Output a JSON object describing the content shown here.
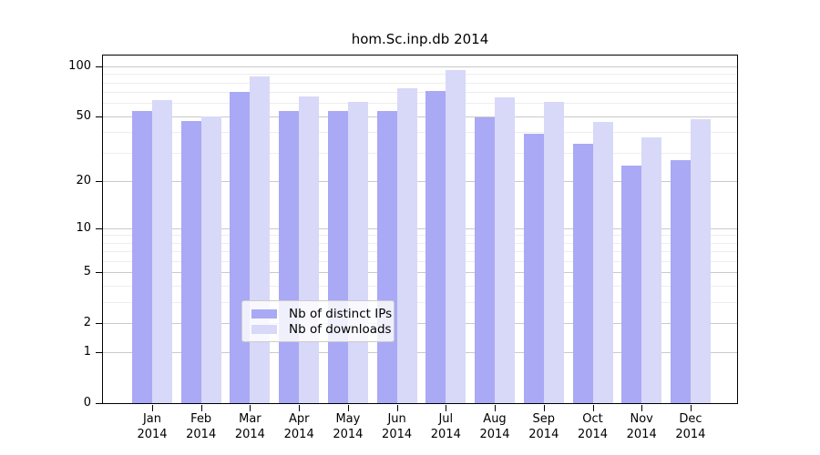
{
  "title": "hom.Sc.inp.db 2014",
  "chart_data": {
    "type": "bar",
    "title": "hom.Sc.inp.db 2014",
    "categories": [
      "Jan",
      "Feb",
      "Mar",
      "Apr",
      "May",
      "Jun",
      "Jul",
      "Aug",
      "Sep",
      "Oct",
      "Nov",
      "Dec"
    ],
    "category_year": "2014",
    "series": [
      {
        "name": "Nb of distinct IPs",
        "color": "#a9a9f5",
        "values": [
          54,
          47,
          70,
          54,
          54,
          54,
          71,
          49,
          39,
          34,
          25,
          27
        ]
      },
      {
        "name": "Nb of downloads",
        "color": "#d8d8f8",
        "values": [
          63,
          50,
          87,
          66,
          61,
          74,
          95,
          65,
          61,
          46,
          37,
          48
        ]
      }
    ],
    "xlabel": "",
    "ylabel": "",
    "y_scale": "log10(value+1)",
    "yticks": [
      0,
      1,
      2,
      5,
      10,
      20,
      50,
      100
    ],
    "minor_gridlines": [
      3,
      4,
      6,
      7,
      8,
      9,
      30,
      40,
      60,
      70,
      80,
      90
    ],
    "ylim": [
      0,
      120
    ],
    "grid": true,
    "legend_position": "inside-bottom-center",
    "frame_color": "#000000",
    "background_color": "#ffffff"
  }
}
